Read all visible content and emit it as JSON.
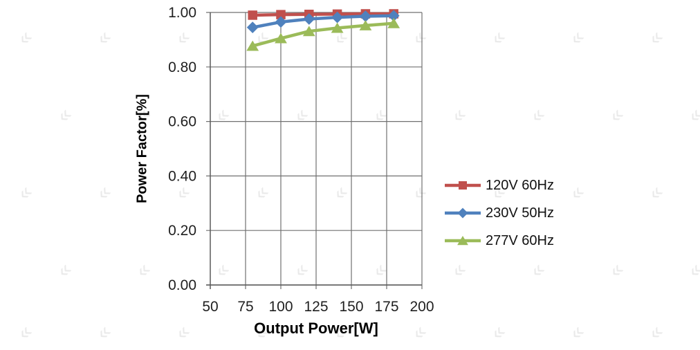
{
  "chart_data": {
    "type": "line",
    "title": "",
    "xlabel": "Output Power[W]",
    "ylabel": "Power Factor[%]",
    "xlim": [
      50,
      200
    ],
    "ylim": [
      0.0,
      1.0
    ],
    "x_ticks": [
      50,
      75,
      100,
      125,
      150,
      175,
      200
    ],
    "x_tick_labels": [
      "50",
      "75",
      "100",
      "125",
      "150",
      "175",
      "200"
    ],
    "y_ticks": [
      0.0,
      0.2,
      0.4,
      0.6,
      0.8,
      1.0
    ],
    "y_tick_labels": [
      "0.00",
      "0.20",
      "0.40",
      "0.60",
      "0.80",
      "1.00"
    ],
    "grid": true,
    "legend_position": "right",
    "x": [
      80,
      100,
      120,
      140,
      160,
      180
    ],
    "series": [
      {
        "name": "120V 60Hz",
        "color": "#C0504D",
        "marker": "square",
        "values": [
          0.99,
          0.992,
          0.993,
          0.994,
          0.995,
          0.995
        ]
      },
      {
        "name": "230V 50Hz",
        "color": "#4F81BD",
        "marker": "diamond",
        "values": [
          0.945,
          0.965,
          0.976,
          0.982,
          0.986,
          0.988
        ]
      },
      {
        "name": "277V 60Hz",
        "color": "#9BBB59",
        "marker": "triangle-up",
        "values": [
          0.877,
          0.905,
          0.931,
          0.943,
          0.952,
          0.96
        ]
      }
    ],
    "colors": {
      "gridline": "#707070",
      "axis": "#595959",
      "tick_text": "#1f1f1f"
    }
  },
  "watermark": {
    "glyph": "«"
  }
}
